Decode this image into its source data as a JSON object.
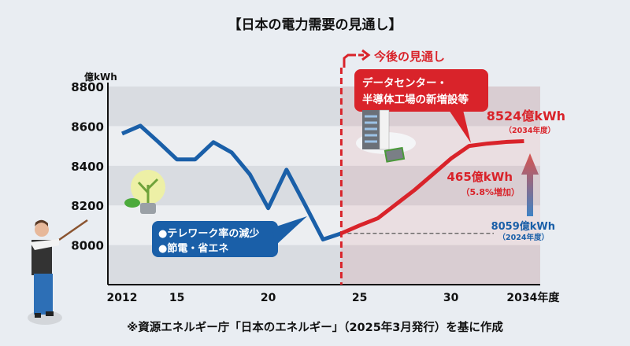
{
  "chart_data": {
    "type": "line",
    "title": "【日本の電力需要の見通し】",
    "ylabel": "億kWh",
    "ylim": [
      7800,
      8800
    ],
    "yticks": [
      8000,
      8200,
      8400,
      8600,
      8800
    ],
    "xlim": [
      2011.2,
      2035
    ],
    "xticks": [
      {
        "x": 2012,
        "label": "2012"
      },
      {
        "x": 2015,
        "label": "15"
      },
      {
        "x": 2020,
        "label": "20"
      },
      {
        "x": 2025,
        "label": "25"
      },
      {
        "x": 2030,
        "label": "30"
      },
      {
        "x": 2034,
        "label": "2034年度"
      }
    ],
    "grid": "alternating horizontal bands",
    "series": [
      {
        "role": "actual",
        "color": "#1a5fa8",
        "x": [
          2012,
          2013,
          2014,
          2015,
          2016,
          2017,
          2018,
          2019,
          2020,
          2021,
          2022,
          2023,
          2024
        ],
        "y": [
          8562,
          8602,
          8519,
          8432,
          8432,
          8519,
          8467,
          8356,
          8186,
          8380,
          8206,
          8028,
          8059
        ]
      },
      {
        "role": "forecast",
        "color": "#d9232a",
        "x": [
          2024,
          2025,
          2026,
          2027,
          2028,
          2029,
          2030,
          2031,
          2032,
          2033,
          2034
        ],
        "y": [
          8059,
          8099,
          8135,
          8206,
          8277,
          8356,
          8436,
          8500,
          8512,
          8520,
          8524
        ]
      }
    ],
    "forecast_start": 2024,
    "forecast_label": "今後の見通し",
    "callout_blue": [
      "●テレワーク率の減少",
      "●節電・省エネ"
    ],
    "callout_red": [
      "データセンター・",
      "半導体工場の新増設等"
    ],
    "end_value": {
      "main": "8524億kWh",
      "sub": "（2034年度）"
    },
    "start_value": {
      "main": "8059億kWh",
      "sub": "（2024年度）"
    },
    "increase": {
      "main": "465億kWh",
      "sub": "（5.8%増加）"
    },
    "source": "※資源エネルギー庁「日本のエネルギー」（2025年3月発行）を基に作成",
    "colors": {
      "background": "#e9edf2",
      "band": "#d9dce1",
      "forecast_bg": "#ecdde1",
      "blue": "#1a5fa8",
      "red": "#d9232a"
    }
  }
}
